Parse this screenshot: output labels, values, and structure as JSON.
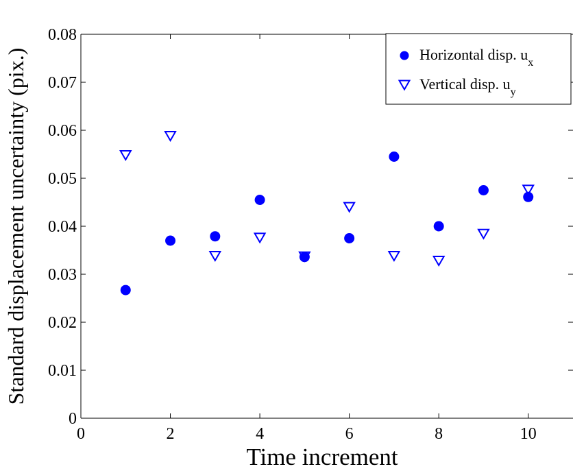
{
  "chart_data": {
    "type": "scatter",
    "xlabel": "Time increment",
    "ylabel": "Standard displacement uncertainty (pix.)",
    "xlim": [
      0,
      11
    ],
    "ylim": [
      0,
      0.08
    ],
    "xticks": [
      "0",
      "2",
      "4",
      "6",
      "8",
      "10"
    ],
    "xtick_values": [
      0,
      2,
      4,
      6,
      8,
      10
    ],
    "yticks": [
      "0",
      "0.01",
      "0.02",
      "0.03",
      "0.04",
      "0.05",
      "0.06",
      "0.07",
      "0.08"
    ],
    "ytick_values": [
      0,
      0.01,
      0.02,
      0.03,
      0.04,
      0.05,
      0.06,
      0.07,
      0.08
    ],
    "grid": false,
    "legend_position": "top-right",
    "marker_color": "#0000ff",
    "series": [
      {
        "name": "Horizontal disp. u",
        "name_subscript": "x",
        "marker": "filled-circle",
        "x": [
          1,
          2,
          3,
          4,
          5,
          6,
          7,
          8,
          9,
          10
        ],
        "y": [
          0.0267,
          0.037,
          0.0379,
          0.0455,
          0.0336,
          0.0375,
          0.0545,
          0.04,
          0.0475,
          0.0461
        ]
      },
      {
        "name": "Vertical disp. u",
        "name_subscript": "y",
        "marker": "open-down-triangle",
        "x": [
          1,
          2,
          3,
          4,
          5,
          6,
          7,
          8,
          9,
          10
        ],
        "y": [
          0.055,
          0.059,
          0.034,
          0.0378,
          0.0339,
          0.0442,
          0.034,
          0.033,
          0.0386,
          0.0478
        ]
      }
    ]
  }
}
